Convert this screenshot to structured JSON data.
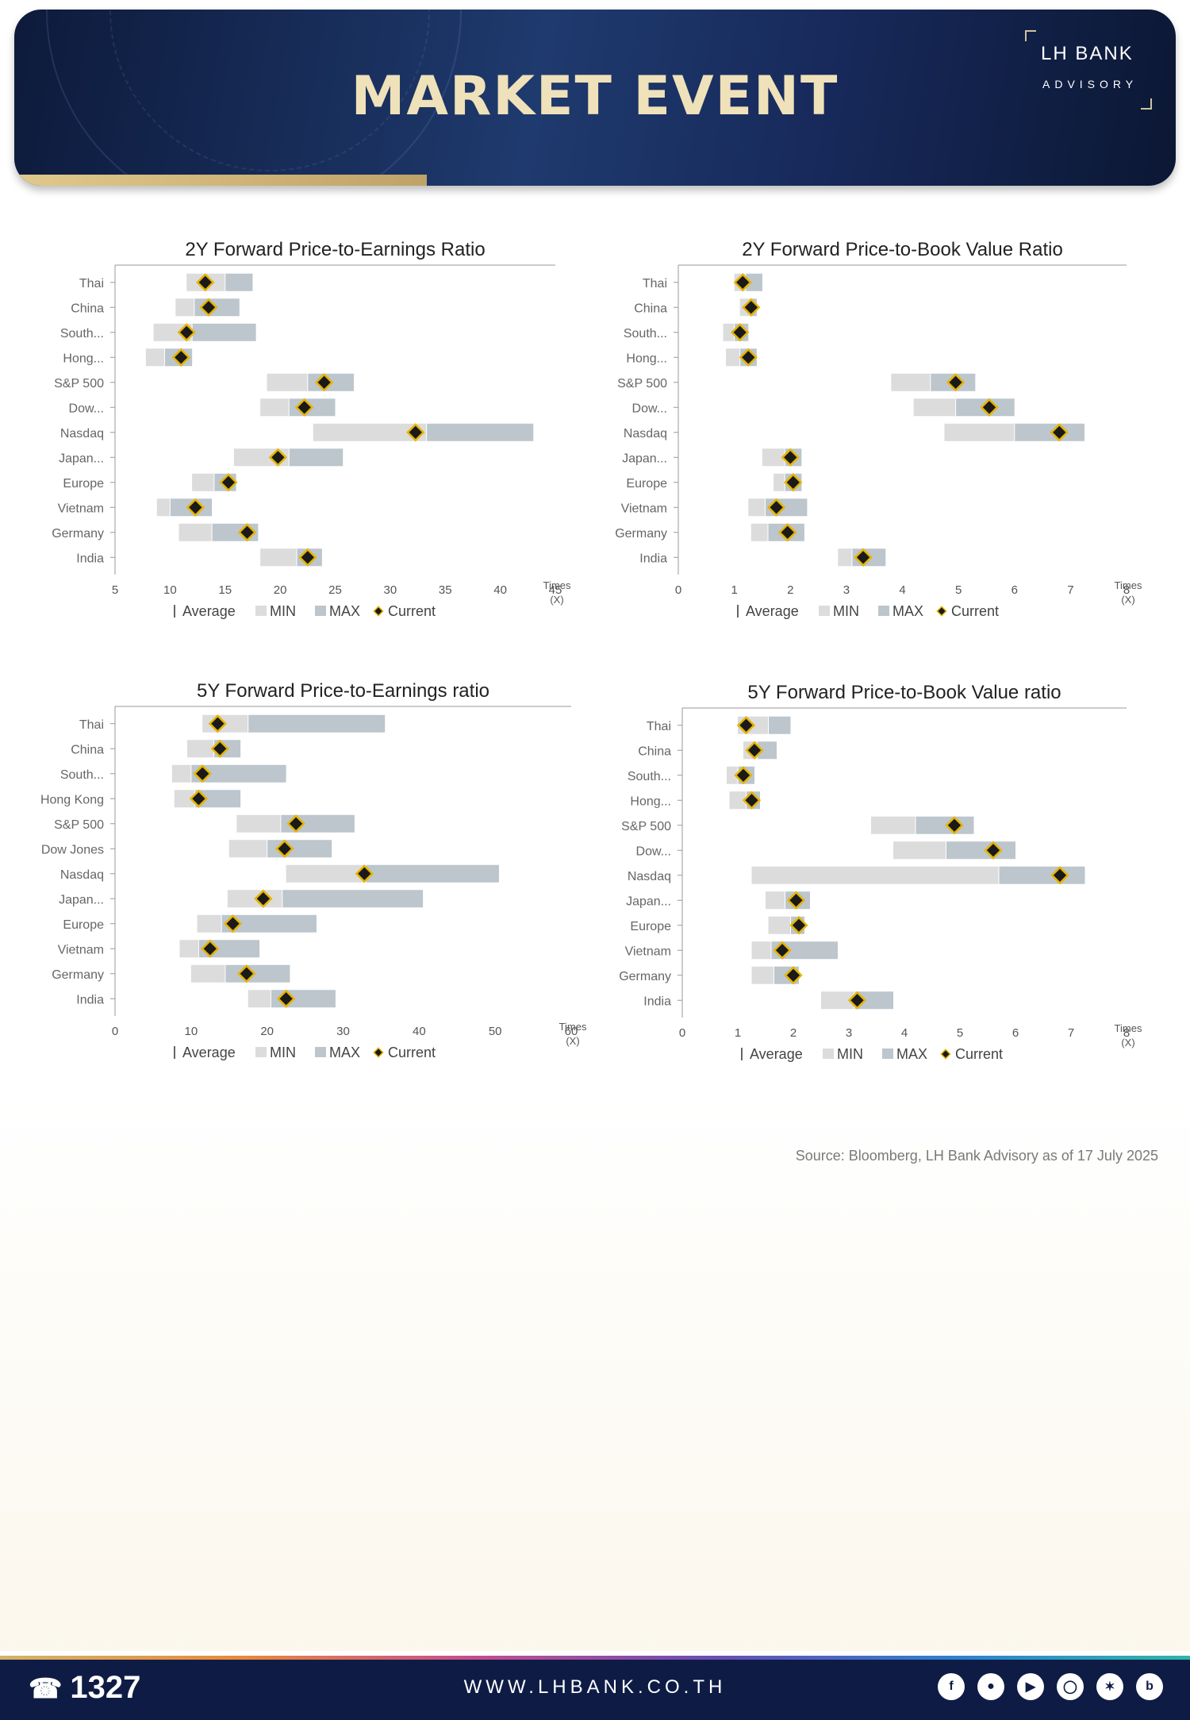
{
  "header": {
    "title": "MARKET EVENT",
    "logo_bank": "LH BANK",
    "logo_sub": "ADVISORY"
  },
  "legend": {
    "average": "Average",
    "min": "MIN",
    "max": "MAX",
    "current": "Current"
  },
  "colors": {
    "min": "#dcdcdc",
    "max": "#bcc6cc",
    "marker": "#1a1a1a",
    "marker_border": "#e6b400",
    "axis": "#888888",
    "navy": "#0e1c45"
  },
  "chart_data": [
    {
      "type": "bar",
      "title": "2Y Forward Price-to-Earnings Ratio",
      "xlabel": "Times (X)",
      "xlim": [
        5,
        45
      ],
      "xticks": [
        5,
        10,
        15,
        20,
        25,
        30,
        35,
        40,
        45
      ],
      "categories": [
        "Thai",
        "China",
        "South...",
        "Hong...",
        "S&P 500",
        "Dow...",
        "Nasdaq",
        "Japan...",
        "Europe",
        "Vietnam",
        "Germany",
        "India"
      ],
      "series": [
        {
          "name": "MIN",
          "values": [
            11.5,
            10.5,
            8.5,
            7.8,
            18.8,
            18.2,
            23.0,
            15.8,
            12.0,
            8.8,
            10.8,
            18.2
          ]
        },
        {
          "name": "Average",
          "values": [
            15.0,
            12.2,
            12.0,
            9.5,
            22.5,
            20.8,
            33.3,
            20.8,
            14.0,
            10.0,
            13.8,
            21.5
          ]
        },
        {
          "name": "MAX",
          "values": [
            17.5,
            16.3,
            17.8,
            12.0,
            26.7,
            25.0,
            43.0,
            25.7,
            16.0,
            13.8,
            18.0,
            23.8
          ]
        },
        {
          "name": "Current",
          "values": [
            13.2,
            13.5,
            11.5,
            11.0,
            24.0,
            22.2,
            32.3,
            19.8,
            15.3,
            12.3,
            17.0,
            22.5
          ]
        }
      ]
    },
    {
      "type": "bar",
      "title": "2Y Forward Price-to-Book Value Ratio",
      "xlabel": "Times (X)",
      "xlim": [
        0,
        8
      ],
      "xticks": [
        0,
        1,
        2,
        3,
        4,
        5,
        6,
        7,
        8
      ],
      "categories": [
        "Thai",
        "China",
        "South...",
        "Hong...",
        "S&P 500",
        "Dow...",
        "Nasdaq",
        "Japan...",
        "Europe",
        "Vietnam",
        "Germany",
        "India"
      ],
      "series": [
        {
          "name": "MIN",
          "values": [
            1.0,
            1.1,
            0.8,
            0.85,
            3.8,
            4.2,
            4.75,
            1.5,
            1.7,
            1.25,
            1.3,
            2.85
          ]
        },
        {
          "name": "Average",
          "values": [
            1.2,
            1.3,
            1.0,
            1.1,
            4.5,
            4.95,
            6.0,
            1.9,
            1.9,
            1.55,
            1.6,
            3.1
          ]
        },
        {
          "name": "MAX",
          "values": [
            1.5,
            1.4,
            1.25,
            1.4,
            5.3,
            6.0,
            7.25,
            2.2,
            2.2,
            2.3,
            2.25,
            3.7
          ]
        },
        {
          "name": "Current",
          "values": [
            1.15,
            1.3,
            1.1,
            1.25,
            4.95,
            5.55,
            6.8,
            2.0,
            2.05,
            1.75,
            1.95,
            3.3
          ]
        }
      ]
    },
    {
      "type": "bar",
      "title": "5Y Forward Price-to-Earnings ratio",
      "xlabel": "Times (X)",
      "xlim": [
        0,
        60
      ],
      "xticks": [
        0,
        10,
        20,
        30,
        40,
        50,
        60
      ],
      "categories": [
        "Thai",
        "China",
        "South...",
        "Hong Kong",
        "S&P 500",
        "Dow Jones",
        "Nasdaq",
        "Japan...",
        "Europe",
        "Vietnam",
        "Germany",
        "India"
      ],
      "series": [
        {
          "name": "MIN",
          "values": [
            11.5,
            9.5,
            7.5,
            7.8,
            16.0,
            15.0,
            22.5,
            14.8,
            10.8,
            8.5,
            10.0,
            17.5
          ]
        },
        {
          "name": "Average",
          "values": [
            17.5,
            13.0,
            10.0,
            10.5,
            21.8,
            20.0,
            33.0,
            22.0,
            14.0,
            11.0,
            14.5,
            20.5
          ]
        },
        {
          "name": "MAX",
          "values": [
            35.5,
            16.5,
            22.5,
            16.5,
            31.5,
            28.5,
            50.5,
            40.5,
            26.5,
            19.0,
            23.0,
            29.0
          ]
        },
        {
          "name": "Current",
          "values": [
            13.5,
            13.8,
            11.5,
            11.0,
            23.8,
            22.3,
            32.8,
            19.5,
            15.5,
            12.5,
            17.3,
            22.5
          ]
        }
      ]
    },
    {
      "type": "bar",
      "title": "5Y Forward Price-to-Book Value ratio",
      "xlabel": "Times (X)",
      "xlim": [
        0,
        8
      ],
      "xticks": [
        0,
        1,
        2,
        3,
        4,
        5,
        6,
        7,
        8
      ],
      "categories": [
        "Thai",
        "China",
        "South...",
        "Hong...",
        "S&P 500",
        "Dow...",
        "Nasdaq",
        "Japan...",
        "Europe",
        "Vietnam",
        "Germany",
        "India"
      ],
      "series": [
        {
          "name": "MIN",
          "values": [
            1.0,
            1.1,
            0.8,
            0.85,
            3.4,
            3.8,
            1.25,
            1.5,
            1.55,
            1.25,
            1.25,
            2.5
          ]
        },
        {
          "name": "Average",
          "values": [
            1.55,
            1.35,
            1.0,
            1.15,
            4.2,
            4.75,
            5.7,
            1.85,
            1.95,
            1.6,
            1.65,
            3.1
          ]
        },
        {
          "name": "MAX",
          "values": [
            1.95,
            1.7,
            1.3,
            1.4,
            5.25,
            6.0,
            7.25,
            2.3,
            2.2,
            2.8,
            2.1,
            3.8
          ]
        },
        {
          "name": "Current",
          "values": [
            1.15,
            1.3,
            1.1,
            1.25,
            4.9,
            5.6,
            6.8,
            2.05,
            2.1,
            1.8,
            2.0,
            3.15
          ]
        }
      ]
    }
  ],
  "source": "Source: Bloomberg,  LH Bank Advisory  as of 17 July 2025",
  "footer": {
    "phone": "1327",
    "website": "WWW.LHBANK.CO.TH",
    "social": [
      "facebook-icon",
      "line-icon",
      "youtube-icon",
      "instagram-icon",
      "twitter-icon",
      "blockdit-icon"
    ]
  }
}
